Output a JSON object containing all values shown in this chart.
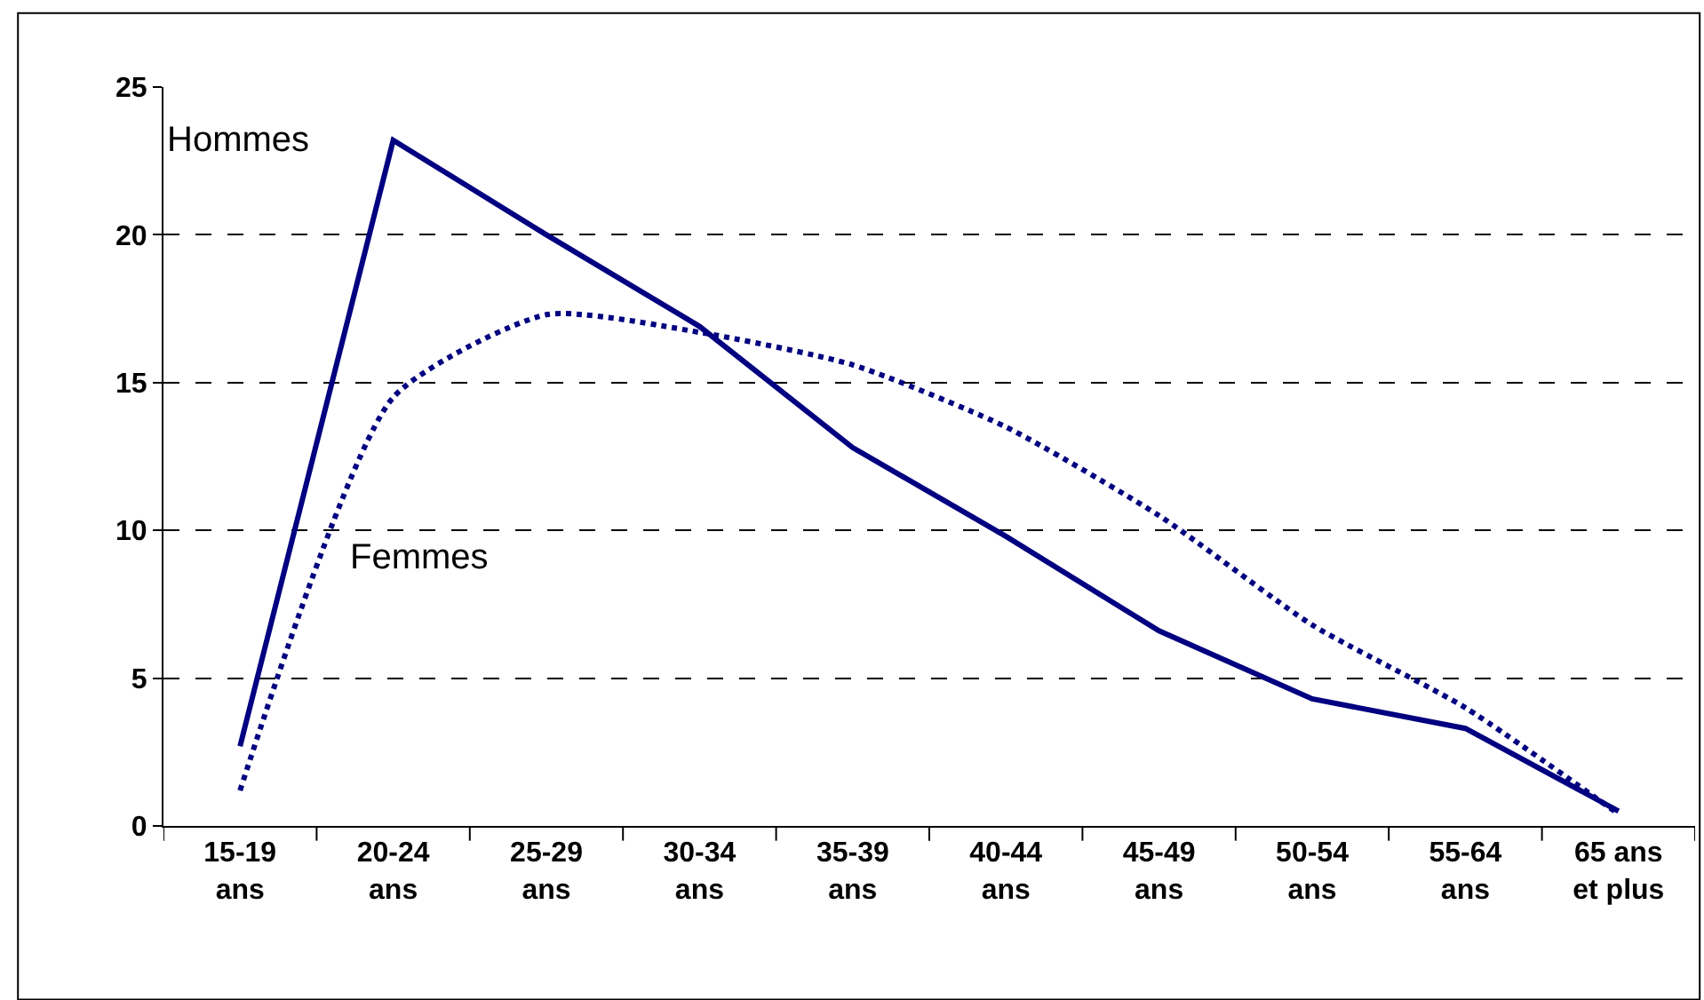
{
  "chart_data": {
    "type": "line",
    "categories": [
      "15-19 ans",
      "20-24 ans",
      "25-29 ans",
      "30-34 ans",
      "35-39 ans",
      "40-44 ans",
      "45-49 ans",
      "50-54 ans",
      "55-64 ans",
      "65 ans et plus"
    ],
    "series": [
      {
        "name": "Hommes",
        "color": "#000080",
        "line_style": "solid",
        "values": [
          2.7,
          23.2,
          20.0,
          16.9,
          12.8,
          9.8,
          6.6,
          4.3,
          3.3,
          0.5
        ]
      },
      {
        "name": "Femmes",
        "color": "#000080",
        "line_style": "dotted",
        "values": [
          1.2,
          14.5,
          17.3,
          16.7,
          15.6,
          13.5,
          10.5,
          6.8,
          4.0,
          0.4
        ]
      }
    ],
    "ylim": [
      0,
      25
    ],
    "yticks": [
      0,
      5,
      10,
      15,
      20,
      25
    ],
    "grid": "y",
    "legend": false,
    "marker": "none"
  }
}
